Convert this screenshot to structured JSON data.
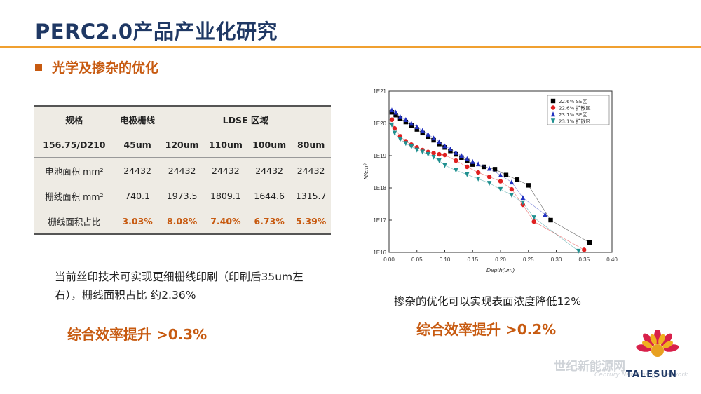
{
  "header": {
    "title": "PERC2.0产品产业化研究",
    "section": "光学及掺杂的优化"
  },
  "table": {
    "rows": [
      [
        "规格",
        "电极栅线",
        "LDSE 区域",
        "",
        "",
        ""
      ],
      [
        "156.75/D210",
        "45um",
        "120um",
        "110um",
        "100um",
        "80um"
      ],
      [
        "电池面积 mm²",
        "24432",
        "24432",
        "24432",
        "24432",
        "24432"
      ],
      [
        "栅线面积 mm²",
        "740.1",
        "1973.5",
        "1809.1",
        "1644.6",
        "1315.7"
      ],
      [
        "栅线面积占比",
        "3.03%",
        "8.08%",
        "7.40%",
        "6.73%",
        "5.39%"
      ]
    ]
  },
  "left_note": "当前丝印技术可实现更细栅线印刷（印刷后35um左右），栅线面积占比 约2.36%",
  "left_gain": "综合效率提升 >0.3%",
  "right_caption": "掺杂的优化可以实现表面浓度降低12%",
  "right_gain": "综合效率提升 >0.2%",
  "logo_text": "TALESUN",
  "watermark": "世纪新能源网",
  "watermark_sub": "Century New Energy Network",
  "chart_data": {
    "type": "scatter",
    "xlabel": "Depth(um)",
    "ylabel": "N/cm³",
    "xlim": [
      0.0,
      0.4
    ],
    "ylim_log10": [
      16,
      21
    ],
    "log_y": true,
    "x_ticks": [
      "0.00",
      "0.05",
      "0.10",
      "0.15",
      "0.20",
      "0.25",
      "0.30",
      "0.35",
      "0.40"
    ],
    "y_ticks": [
      "1E16",
      "1E17",
      "1E18",
      "1E19",
      "1E20",
      "1E21"
    ],
    "legend_position": "top-right",
    "series": [
      {
        "name": "22.6% SE区",
        "color": "#000000",
        "marker": "square",
        "points": [
          [
            0.005,
            2.2e+20
          ],
          [
            0.012,
            1.8e+20
          ],
          [
            0.02,
            1.4e+20
          ],
          [
            0.03,
            1.1e+20
          ],
          [
            0.04,
            8.5e+19
          ],
          [
            0.05,
            6.5e+19
          ],
          [
            0.06,
            5e+19
          ],
          [
            0.07,
            3.9e+19
          ],
          [
            0.08,
            3e+19
          ],
          [
            0.09,
            2.3e+19
          ],
          [
            0.1,
            1.8e+19
          ],
          [
            0.11,
            1.4e+19
          ],
          [
            0.12,
            1.1e+19
          ],
          [
            0.13,
            8.7e+18
          ],
          [
            0.14,
            6.8e+18
          ],
          [
            0.15,
            5.3e+18
          ],
          [
            0.17,
            4.5e+18
          ],
          [
            0.19,
            3.8e+18
          ],
          [
            0.21,
            2.5e+18
          ],
          [
            0.23,
            1.8e+18
          ],
          [
            0.25,
            1.2e+18
          ],
          [
            0.29,
            1e+17
          ],
          [
            0.36,
            2e+16
          ]
        ]
      },
      {
        "name": "22.6% 扩散区",
        "color": "#e02020",
        "marker": "circle",
        "points": [
          [
            0.005,
            1.3e+20
          ],
          [
            0.01,
            7e+19
          ],
          [
            0.02,
            4e+19
          ],
          [
            0.03,
            2.8e+19
          ],
          [
            0.04,
            2.2e+19
          ],
          [
            0.05,
            1.8e+19
          ],
          [
            0.06,
            1.5e+19
          ],
          [
            0.07,
            1.3e+19
          ],
          [
            0.08,
            1.2e+19
          ],
          [
            0.09,
            1.1e+19
          ],
          [
            0.1,
            1.05e+19
          ],
          [
            0.12,
            7e+18
          ],
          [
            0.14,
            4.5e+18
          ],
          [
            0.16,
            3e+18
          ],
          [
            0.18,
            2.2e+18
          ],
          [
            0.2,
            1.6e+18
          ],
          [
            0.22,
            9e+17
          ],
          [
            0.24,
            3e+17
          ],
          [
            0.26,
            9e+16
          ],
          [
            0.35,
            1.2e+16
          ]
        ]
      },
      {
        "name": "23.1% SE区",
        "color": "#2030c0",
        "marker": "triangle",
        "points": [
          [
            0.005,
            2.6e+20
          ],
          [
            0.012,
            2.2e+20
          ],
          [
            0.02,
            1.6e+20
          ],
          [
            0.03,
            1.3e+20
          ],
          [
            0.04,
            1e+20
          ],
          [
            0.05,
            7.8e+19
          ],
          [
            0.06,
            6e+19
          ],
          [
            0.07,
            4.6e+19
          ],
          [
            0.08,
            3.5e+19
          ],
          [
            0.09,
            2.7e+19
          ],
          [
            0.1,
            2e+19
          ],
          [
            0.11,
            1.6e+19
          ],
          [
            0.12,
            1.25e+19
          ],
          [
            0.13,
            1e+19
          ],
          [
            0.14,
            8e+18
          ],
          [
            0.15,
            6.5e+18
          ],
          [
            0.16,
            5.5e+18
          ],
          [
            0.18,
            4e+18
          ],
          [
            0.2,
            2.5e+18
          ],
          [
            0.22,
            1.5e+18
          ],
          [
            0.24,
            5e+17
          ],
          [
            0.28,
            1.5e+17
          ]
        ]
      },
      {
        "name": "23.1% 扩散区",
        "color": "#209090",
        "marker": "triangle-down",
        "points": [
          [
            0.005,
            9e+19
          ],
          [
            0.01,
            5e+19
          ],
          [
            0.02,
            3.2e+19
          ],
          [
            0.03,
            2.4e+19
          ],
          [
            0.04,
            1.9e+19
          ],
          [
            0.05,
            1.5e+19
          ],
          [
            0.06,
            1.3e+19
          ],
          [
            0.07,
            1.1e+19
          ],
          [
            0.08,
            9e+18
          ],
          [
            0.09,
            7e+18
          ],
          [
            0.1,
            5e+18
          ],
          [
            0.12,
            3.5e+18
          ],
          [
            0.14,
            2.6e+18
          ],
          [
            0.16,
            1.9e+18
          ],
          [
            0.18,
            1.4e+18
          ],
          [
            0.2,
            9e+17
          ],
          [
            0.22,
            6e+17
          ],
          [
            0.24,
            3.5e+17
          ],
          [
            0.26,
            1.2e+17
          ],
          [
            0.34,
            1.1e+16
          ]
        ]
      }
    ]
  }
}
